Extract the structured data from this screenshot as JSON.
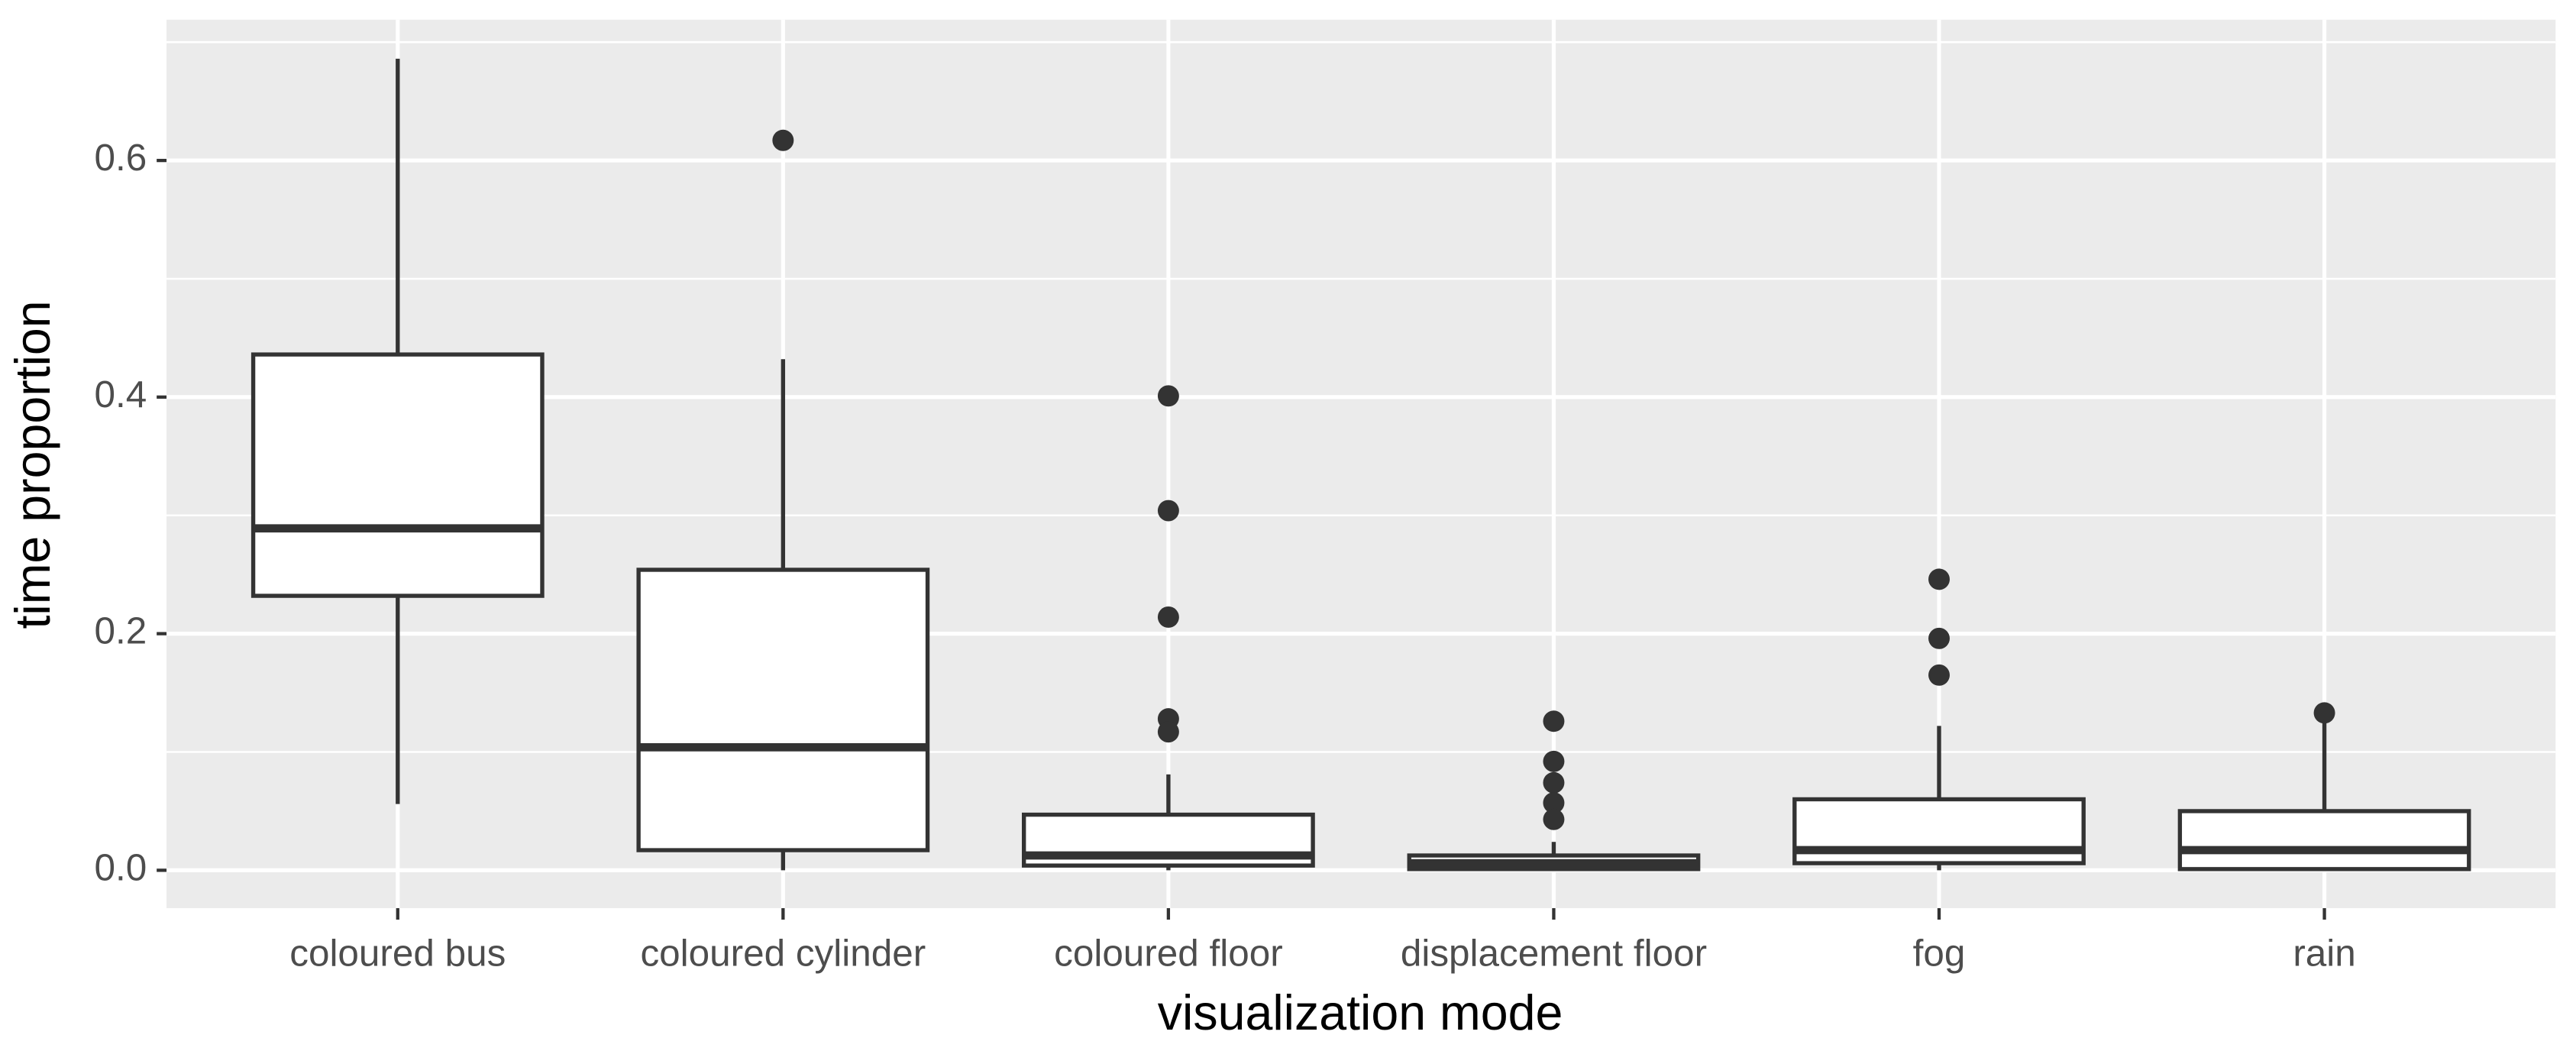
{
  "chart_data": {
    "type": "box",
    "x_label": "visualization mode",
    "y_label": "time proportion",
    "categories": [
      "coloured bus",
      "coloured cylinder",
      "coloured floor",
      "displacement floor",
      "fog",
      "rain"
    ],
    "boxes": [
      {
        "whisker_low": 0.056,
        "q1": 0.232,
        "median": 0.289,
        "q3": 0.436,
        "whisker_high": 0.686,
        "outliers": []
      },
      {
        "whisker_low": 0.0,
        "q1": 0.017,
        "median": 0.104,
        "q3": 0.254,
        "whisker_high": 0.432,
        "outliers": [
          0.617
        ]
      },
      {
        "whisker_low": 0.0,
        "q1": 0.004,
        "median": 0.0125,
        "q3": 0.047,
        "whisker_high": 0.081,
        "outliers": [
          0.401,
          0.304,
          0.214,
          0.128,
          0.117
        ]
      },
      {
        "whisker_low": 0.0,
        "q1": 0.001,
        "median": 0.006,
        "q3": 0.0125,
        "whisker_high": 0.024,
        "outliers": [
          0.126,
          0.092,
          0.074,
          0.057,
          0.043
        ]
      },
      {
        "whisker_low": 0.0,
        "q1": 0.006,
        "median": 0.017,
        "q3": 0.06,
        "whisker_high": 0.122,
        "outliers": [
          0.246,
          0.196,
          0.165
        ]
      },
      {
        "whisker_low": 0.0,
        "q1": 0.001,
        "median": 0.017,
        "q3": 0.05,
        "whisker_high": 0.128,
        "outliers": [
          0.133
        ]
      }
    ],
    "color": "#333333",
    "box_fill": "#ffffff",
    "ylim": [
      -0.032,
      0.719
    ],
    "yticks": [
      {
        "value": 0,
        "label": "0.0"
      },
      0.2,
      0.4,
      0.6
    ],
    "minor_yticks": [
      0.1,
      0.3,
      0.5,
      0.7
    ],
    "grid": true
  }
}
